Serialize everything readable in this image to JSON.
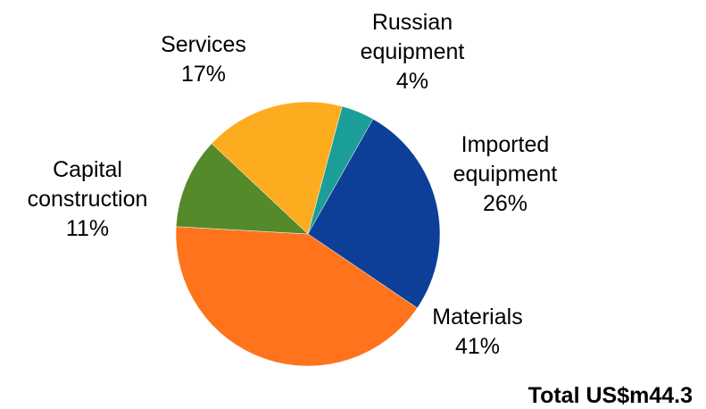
{
  "chart_data": {
    "type": "pie",
    "slices": [
      {
        "label_lines": [
          "Russian",
          "equipment"
        ],
        "value": 4,
        "value_label": "4%",
        "color": "#1a9e97"
      },
      {
        "label_lines": [
          "Imported",
          "equipment"
        ],
        "value": 26,
        "value_label": "26%",
        "color": "#0d3f99"
      },
      {
        "label_lines": [
          "Materials"
        ],
        "value": 41,
        "value_label": "41%",
        "color": "#ff731c"
      },
      {
        "label_lines": [
          "Capital",
          "construction"
        ],
        "value": 11,
        "value_label": "11%",
        "color": "#558a2a"
      },
      {
        "label_lines": [
          "Services"
        ],
        "value": 17,
        "value_label": "17%",
        "color": "#feac1f"
      }
    ],
    "total_label": "Total US$m44.3"
  }
}
